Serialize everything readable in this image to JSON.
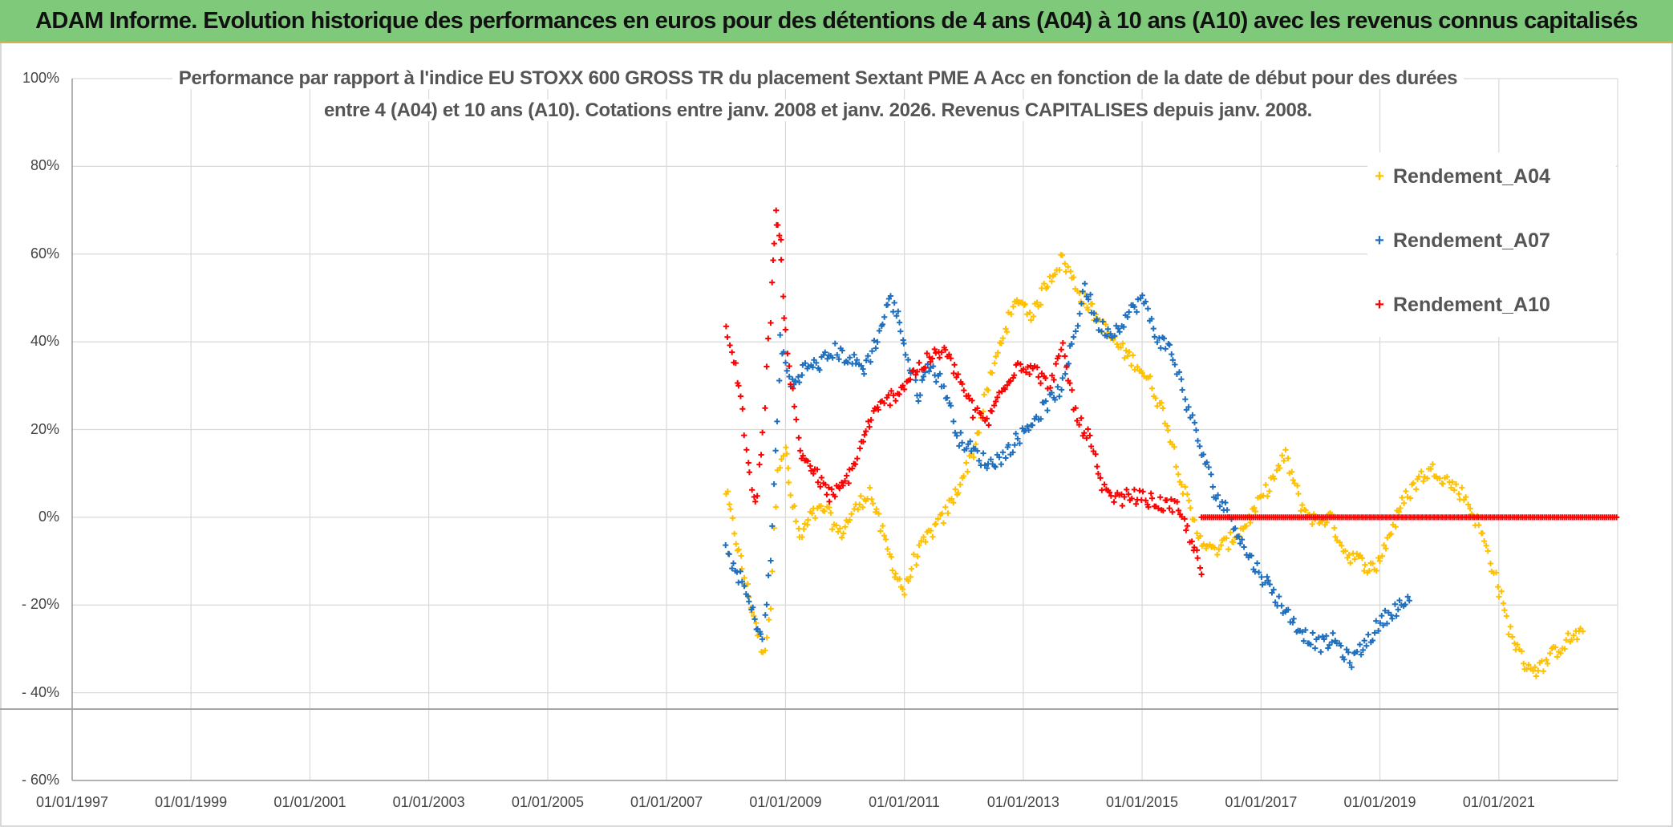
{
  "banner": {
    "title": "ADAM Informe. Evolution historique des performances en euros pour des détentions de 4 ans (A04) à 10 ans (A10) avec les revenus connus capitalisés"
  },
  "colors": {
    "banner_bg": "#7fca7a",
    "A04": "#ffc000",
    "A07": "#1f6fbf",
    "A10": "#ff0000",
    "grid": "#d9d9d9"
  },
  "chart_data": {
    "type": "scatter",
    "title_lines": [
      "Performance  par rapport à l'indice EU STOXX 600 GROSS TR  du placement Sextant PME A Acc en fonction de la date de début pour des durées",
      "entre 4 (A04) et 10 ans (A10). Cotations entre janv. 2008 et janv. 2026. Revenus CAPITALISES depuis janv. 2008."
    ],
    "x_axis": {
      "type": "date",
      "range": [
        "1997-01-01",
        "2023-01-01"
      ],
      "tick_labels": [
        "01/01/1997",
        "01/01/1999",
        "01/01/2001",
        "01/01/2003",
        "01/01/2005",
        "01/01/2007",
        "01/01/2009",
        "01/01/2011",
        "01/01/2013",
        "01/01/2015",
        "01/01/2017",
        "01/01/2019",
        "01/01/2021"
      ]
    },
    "y_axis": {
      "range": [
        -0.6,
        1.0
      ],
      "unit": "percent",
      "ticks": [
        1.0,
        0.8,
        0.6,
        0.4,
        0.2,
        0.0,
        -0.2,
        -0.4,
        -0.6
      ],
      "tick_labels": [
        "100%",
        "80%",
        "60%",
        "40%",
        "20%",
        "0%",
        "- 20%",
        "- 40%",
        "- 60%"
      ]
    },
    "grid": true,
    "legend_position": "top-right",
    "marker": "plus",
    "series": [
      {
        "name": "Rendement_A04",
        "color": "#ffc000",
        "points": [
          [
            "2008-01-01",
            0.06
          ],
          [
            "2008-03-01",
            -0.05
          ],
          [
            "2008-05-01",
            -0.15
          ],
          [
            "2008-07-01",
            -0.24
          ],
          [
            "2008-08-15",
            -0.32
          ],
          [
            "2008-10-01",
            -0.2
          ],
          [
            "2008-11-15",
            0.12
          ],
          [
            "2009-01-01",
            0.16
          ],
          [
            "2009-02-01",
            0.05
          ],
          [
            "2009-04-01",
            -0.05
          ],
          [
            "2009-06-01",
            0.0
          ],
          [
            "2009-09-01",
            0.02
          ],
          [
            "2009-12-01",
            -0.04
          ],
          [
            "2010-02-01",
            0.0
          ],
          [
            "2010-04-01",
            0.03
          ],
          [
            "2010-06-01",
            0.06
          ],
          [
            "2010-09-01",
            -0.05
          ],
          [
            "2010-11-01",
            -0.12
          ],
          [
            "2011-01-01",
            -0.17
          ],
          [
            "2011-03-01",
            -0.1
          ],
          [
            "2011-06-01",
            -0.04
          ],
          [
            "2011-09-01",
            0.0
          ],
          [
            "2011-12-01",
            0.07
          ],
          [
            "2012-03-01",
            0.15
          ],
          [
            "2012-06-01",
            0.3
          ],
          [
            "2012-09-01",
            0.42
          ],
          [
            "2012-12-01",
            0.5
          ],
          [
            "2013-03-01",
            0.46
          ],
          [
            "2013-06-01",
            0.54
          ],
          [
            "2013-09-01",
            0.59
          ],
          [
            "2013-12-01",
            0.52
          ],
          [
            "2014-03-01",
            0.47
          ],
          [
            "2014-06-01",
            0.42
          ],
          [
            "2014-09-01",
            0.38
          ],
          [
            "2014-12-01",
            0.35
          ],
          [
            "2015-03-01",
            0.3
          ],
          [
            "2015-06-01",
            0.22
          ],
          [
            "2015-09-01",
            0.08
          ],
          [
            "2015-12-01",
            -0.03
          ],
          [
            "2016-03-01",
            -0.08
          ],
          [
            "2016-06-01",
            -0.06
          ],
          [
            "2016-09-01",
            -0.03
          ],
          [
            "2016-12-01",
            0.02
          ],
          [
            "2017-03-01",
            0.08
          ],
          [
            "2017-06-01",
            0.14
          ],
          [
            "2017-09-01",
            0.03
          ],
          [
            "2017-12-01",
            -0.01
          ],
          [
            "2018-03-01",
            0.0
          ],
          [
            "2018-06-01",
            -0.08
          ],
          [
            "2018-09-01",
            -0.1
          ],
          [
            "2018-12-01",
            -0.12
          ],
          [
            "2019-03-01",
            -0.04
          ],
          [
            "2019-06-01",
            0.04
          ],
          [
            "2019-09-01",
            0.09
          ],
          [
            "2019-12-01",
            0.11
          ],
          [
            "2020-03-01",
            0.08
          ],
          [
            "2020-06-01",
            0.05
          ],
          [
            "2020-09-01",
            -0.02
          ],
          [
            "2020-12-01",
            -0.12
          ],
          [
            "2021-03-01",
            -0.25
          ],
          [
            "2021-06-01",
            -0.33
          ],
          [
            "2021-09-01",
            -0.35
          ],
          [
            "2021-12-01",
            -0.31
          ],
          [
            "2022-03-01",
            -0.28
          ],
          [
            "2022-06-01",
            -0.26
          ]
        ]
      },
      {
        "name": "Rendement_A07",
        "color": "#1f6fbf",
        "points": [
          [
            "2008-01-01",
            -0.08
          ],
          [
            "2008-04-01",
            -0.14
          ],
          [
            "2008-06-15",
            -0.22
          ],
          [
            "2008-08-15",
            -0.28
          ],
          [
            "2008-10-01",
            -0.1
          ],
          [
            "2008-12-01",
            0.4
          ],
          [
            "2009-02-01",
            0.3
          ],
          [
            "2009-05-01",
            0.34
          ],
          [
            "2009-08-01",
            0.35
          ],
          [
            "2009-11-01",
            0.38
          ],
          [
            "2010-02-01",
            0.36
          ],
          [
            "2010-05-01",
            0.34
          ],
          [
            "2010-08-01",
            0.42
          ],
          [
            "2010-10-01",
            0.5
          ],
          [
            "2010-12-01",
            0.45
          ],
          [
            "2011-02-01",
            0.34
          ],
          [
            "2011-04-01",
            0.28
          ],
          [
            "2011-06-01",
            0.35
          ],
          [
            "2011-09-01",
            0.3
          ],
          [
            "2011-12-01",
            0.18
          ],
          [
            "2012-03-01",
            0.15
          ],
          [
            "2012-06-01",
            0.12
          ],
          [
            "2012-09-01",
            0.14
          ],
          [
            "2012-12-01",
            0.18
          ],
          [
            "2013-03-01",
            0.22
          ],
          [
            "2013-06-01",
            0.26
          ],
          [
            "2013-09-01",
            0.3
          ],
          [
            "2013-12-01",
            0.45
          ],
          [
            "2014-01-15",
            0.53
          ],
          [
            "2014-04-01",
            0.44
          ],
          [
            "2014-07-01",
            0.42
          ],
          [
            "2014-10-01",
            0.46
          ],
          [
            "2015-01-01",
            0.5
          ],
          [
            "2015-04-01",
            0.41
          ],
          [
            "2015-07-01",
            0.38
          ],
          [
            "2015-10-01",
            0.26
          ],
          [
            "2016-01-01",
            0.15
          ],
          [
            "2016-04-01",
            0.05
          ],
          [
            "2016-07-01",
            0.0
          ],
          [
            "2016-10-01",
            -0.08
          ],
          [
            "2017-01-01",
            -0.13
          ],
          [
            "2017-04-01",
            -0.18
          ],
          [
            "2017-07-01",
            -0.23
          ],
          [
            "2017-10-01",
            -0.27
          ],
          [
            "2018-01-01",
            -0.29
          ],
          [
            "2018-04-01",
            -0.28
          ],
          [
            "2018-07-01",
            -0.33
          ],
          [
            "2018-10-01",
            -0.29
          ],
          [
            "2019-01-01",
            -0.24
          ],
          [
            "2019-04-01",
            -0.21
          ],
          [
            "2019-07-01",
            -0.19
          ]
        ]
      },
      {
        "name": "Rendement_A10",
        "color": "#ff0000",
        "points": [
          [
            "2008-01-01",
            0.42
          ],
          [
            "2008-02-15",
            0.36
          ],
          [
            "2008-04-01",
            0.28
          ],
          [
            "2008-05-15",
            0.12
          ],
          [
            "2008-07-01",
            0.02
          ],
          [
            "2008-08-15",
            0.2
          ],
          [
            "2008-10-01",
            0.46
          ],
          [
            "2008-11-01",
            0.7
          ],
          [
            "2008-12-01",
            0.62
          ],
          [
            "2009-01-01",
            0.42
          ],
          [
            "2009-02-15",
            0.28
          ],
          [
            "2009-04-01",
            0.15
          ],
          [
            "2009-06-01",
            0.12
          ],
          [
            "2009-08-01",
            0.08
          ],
          [
            "2009-10-01",
            0.05
          ],
          [
            "2009-12-01",
            0.06
          ],
          [
            "2010-02-01",
            0.1
          ],
          [
            "2010-04-01",
            0.15
          ],
          [
            "2010-06-01",
            0.22
          ],
          [
            "2010-09-01",
            0.26
          ],
          [
            "2010-12-01",
            0.29
          ],
          [
            "2011-03-01",
            0.33
          ],
          [
            "2011-06-01",
            0.36
          ],
          [
            "2011-09-01",
            0.38
          ],
          [
            "2011-12-01",
            0.32
          ],
          [
            "2012-03-01",
            0.24
          ],
          [
            "2012-06-01",
            0.22
          ],
          [
            "2012-09-01",
            0.3
          ],
          [
            "2012-12-01",
            0.35
          ],
          [
            "2013-03-01",
            0.34
          ],
          [
            "2013-06-01",
            0.3
          ],
          [
            "2013-09-01",
            0.38
          ],
          [
            "2013-12-01",
            0.22
          ],
          [
            "2014-02-15",
            0.18
          ],
          [
            "2014-05-01",
            0.06
          ],
          [
            "2014-08-01",
            0.04
          ],
          [
            "2014-11-01",
            0.05
          ],
          [
            "2015-02-01",
            0.04
          ],
          [
            "2015-05-01",
            0.03
          ],
          [
            "2015-08-01",
            0.02
          ],
          [
            "2015-11-01",
            -0.05
          ],
          [
            "2016-01-01",
            -0.13
          ]
        ],
        "flat": {
          "from": "2016-01-01",
          "to": "2023-01-01",
          "value": 0.0
        }
      }
    ]
  }
}
